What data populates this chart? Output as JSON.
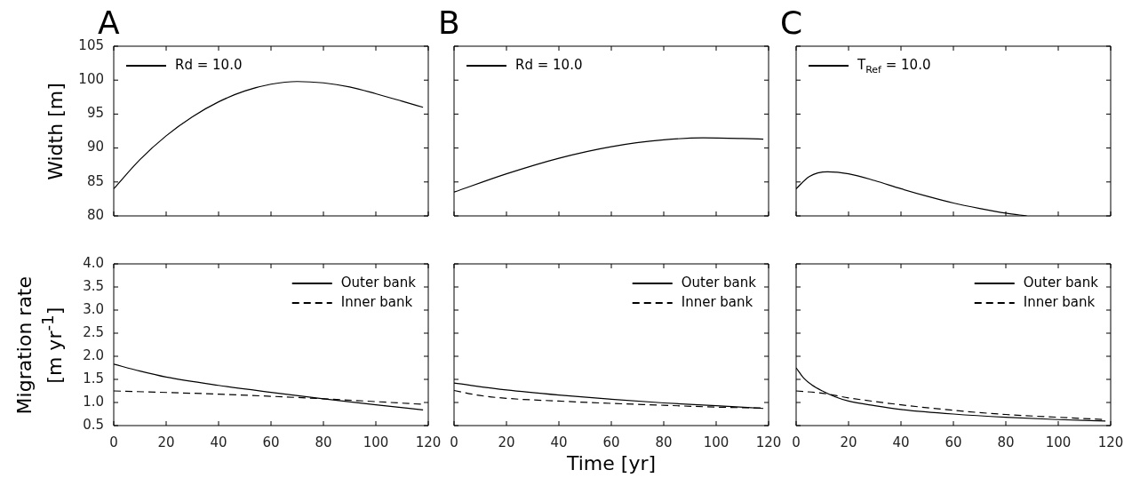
{
  "chart_data": [
    {
      "type": "line",
      "title": "A",
      "ylabel": "Width [m]",
      "xlim": [
        0,
        120
      ],
      "xticks": [
        0,
        20,
        40,
        60,
        80,
        100,
        120
      ],
      "ylim": [
        80,
        105
      ],
      "yticks": [
        80,
        85,
        90,
        95,
        100,
        105
      ],
      "tick_labels": "y",
      "legend": "top left",
      "series": [
        {
          "name": "Rd = 10.0",
          "color": "#000000",
          "line_style": "solid",
          "x": [
            0,
            10,
            20,
            30,
            40,
            50,
            60,
            70,
            80,
            90,
            100,
            110,
            118
          ],
          "values": [
            84,
            88.3,
            91.8,
            94.6,
            96.8,
            98.4,
            99.4,
            99.8,
            99.6,
            99.0,
            98.0,
            96.9,
            96.0
          ]
        }
      ]
    },
    {
      "type": "line",
      "title": "B",
      "xlim": [
        0,
        120
      ],
      "xticks": [
        0,
        20,
        40,
        60,
        80,
        100,
        120
      ],
      "ylim": [
        80,
        105
      ],
      "yticks": [
        80,
        85,
        90,
        95,
        100,
        105
      ],
      "tick_labels": false,
      "legend": "top left",
      "series": [
        {
          "name": "Rd = 10.0",
          "color": "#000000",
          "line_style": "solid",
          "x": [
            0,
            20,
            40,
            60,
            80,
            95,
            110,
            118
          ],
          "values": [
            83.5,
            86.2,
            88.5,
            90.2,
            91.2,
            91.5,
            91.4,
            91.3
          ]
        }
      ]
    },
    {
      "type": "line",
      "title": "C",
      "xlim": [
        0,
        120
      ],
      "xticks": [
        0,
        20,
        40,
        60,
        80,
        100,
        120
      ],
      "ylim": [
        80,
        105
      ],
      "yticks": [
        80,
        85,
        90,
        95,
        100,
        105
      ],
      "tick_labels": false,
      "legend": "top left",
      "series": [
        {
          "name": "T$_{Ref}$ = 10.0",
          "color": "#000000",
          "line_style": "solid",
          "x": [
            0,
            5,
            12,
            20,
            30,
            40,
            50,
            60,
            70,
            80,
            88
          ],
          "values": [
            84,
            85.8,
            86.5,
            86.2,
            85.2,
            84.0,
            82.9,
            81.9,
            81.1,
            80.4,
            80.0
          ]
        }
      ]
    },
    {
      "type": "line",
      "ylabel": "Migration rate [m yr$^{-1}$]",
      "xlim": [
        0,
        120
      ],
      "xticks": [
        0,
        20,
        40,
        60,
        80,
        100,
        120
      ],
      "ylim": [
        0.5,
        4.0
      ],
      "yticks": [
        {
          "value": 0.5,
          "label": "0.5"
        },
        {
          "value": 1,
          "label": "1.0"
        },
        {
          "value": 1.5,
          "label": "1.5"
        },
        {
          "value": 2,
          "label": "2.0"
        },
        {
          "value": 2.5,
          "label": "2.5"
        },
        {
          "value": 3,
          "label": "3.0"
        },
        {
          "value": 3.5,
          "label": "3.5"
        },
        {
          "value": 4,
          "label": "4.0"
        }
      ],
      "legend": "top right",
      "series": [
        {
          "name": "Outer bank",
          "color": "#000000",
          "line_style": "solid",
          "x": [
            0,
            10,
            20,
            40,
            60,
            80,
            100,
            118
          ],
          "values": [
            1.83,
            1.68,
            1.55,
            1.37,
            1.22,
            1.08,
            0.95,
            0.84
          ]
        },
        {
          "name": "Inner bank",
          "color": "#000000",
          "line_style": "dashed",
          "x": [
            0,
            40,
            80,
            118
          ],
          "values": [
            1.25,
            1.18,
            1.08,
            0.96
          ]
        }
      ]
    },
    {
      "type": "line",
      "xlabel": "Time [yr]",
      "xlim": [
        0,
        120
      ],
      "xticks": [
        0,
        20,
        40,
        60,
        80,
        100,
        120
      ],
      "ylim": [
        0.5,
        4.0
      ],
      "yticks": [
        0.5,
        1,
        1.5,
        2,
        2.5,
        3,
        3.5,
        4
      ],
      "tick_labels": "x",
      "legend": "top right",
      "series": [
        {
          "name": "Outer bank",
          "color": "#000000",
          "line_style": "solid",
          "x": [
            0,
            20,
            40,
            60,
            80,
            100,
            118
          ],
          "values": [
            1.42,
            1.27,
            1.16,
            1.07,
            0.99,
            0.93,
            0.87
          ]
        },
        {
          "name": "Inner bank",
          "color": "#000000",
          "line_style": "dashed",
          "x": [
            0,
            10,
            20,
            40,
            60,
            80,
            100,
            118
          ],
          "values": [
            1.26,
            1.15,
            1.09,
            1.03,
            0.98,
            0.94,
            0.9,
            0.88
          ]
        }
      ]
    },
    {
      "type": "line",
      "xlim": [
        0,
        120
      ],
      "xticks": [
        0,
        20,
        40,
        60,
        80,
        100,
        120
      ],
      "ylim": [
        0.5,
        4.0
      ],
      "yticks": [
        0.5,
        1,
        1.5,
        2,
        2.5,
        3,
        3.5,
        4
      ],
      "tick_labels": "x",
      "legend": "top right",
      "series": [
        {
          "name": "Outer bank",
          "color": "#000000",
          "line_style": "solid",
          "x": [
            0,
            3,
            6,
            10,
            15,
            20,
            30,
            40,
            60,
            80,
            100,
            118
          ],
          "values": [
            1.75,
            1.52,
            1.38,
            1.25,
            1.12,
            1.03,
            0.93,
            0.85,
            0.75,
            0.68,
            0.63,
            0.6
          ]
        },
        {
          "name": "Inner bank",
          "color": "#000000",
          "line_style": "dashed",
          "x": [
            0,
            10,
            20,
            40,
            60,
            80,
            100,
            118
          ],
          "values": [
            1.25,
            1.2,
            1.1,
            0.95,
            0.83,
            0.74,
            0.68,
            0.63
          ]
        }
      ]
    }
  ]
}
